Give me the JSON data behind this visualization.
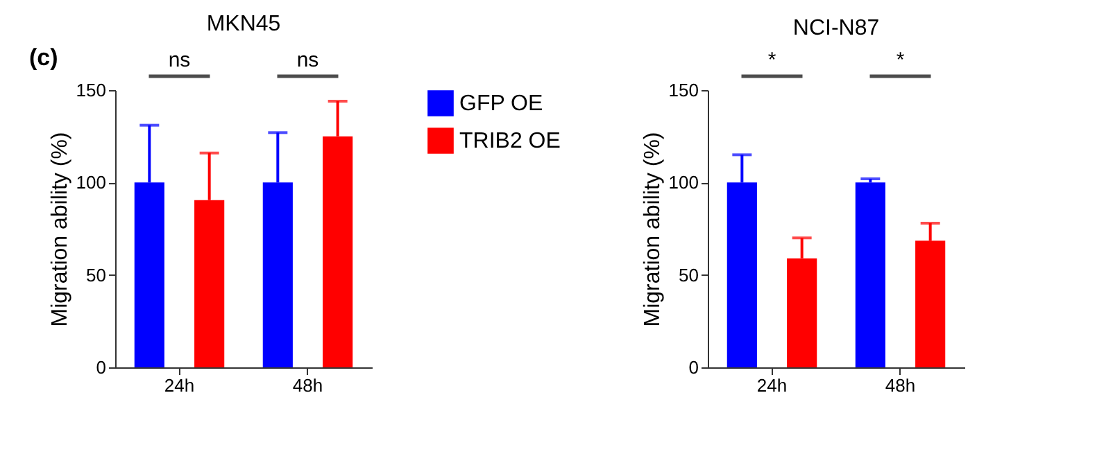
{
  "chart_data": [
    {
      "type": "bar",
      "title": "MKN45",
      "ylabel": "Migration ability (%)",
      "categories": [
        "24h",
        "48h"
      ],
      "series": [
        {
          "name": "GFP OE",
          "color": "#0000ff",
          "values": [
            100,
            100
          ],
          "errors": [
            [
              100,
              131
            ],
            [
              100,
              127
            ]
          ]
        },
        {
          "name": "TRIB2 OE",
          "color": "#ff0000",
          "values": [
            90.5,
            125
          ],
          "errors": [
            [
              90.5,
              116
            ],
            [
              125,
              144
            ]
          ]
        }
      ],
      "ylim": [
        0,
        150
      ],
      "yticks": [
        0,
        50,
        100,
        150
      ],
      "grid": false,
      "legend": "right",
      "annotations": [
        "(c)",
        "ns",
        "ns"
      ]
    },
    {
      "type": "bar",
      "title": "NCI-N87",
      "ylabel": "Migration ability (%)",
      "categories": [
        "24h",
        "48h"
      ],
      "series": [
        {
          "color": "#0000ff",
          "values": [
            100,
            100
          ],
          "errors": [
            [
              100,
              115
            ],
            [
              100,
              102
            ]
          ]
        },
        {
          "color": "#ff0000",
          "values": [
            59,
            68.5
          ],
          "errors": [
            [
              59,
              70
            ],
            [
              68.5,
              78
            ]
          ]
        }
      ],
      "ylim": [
        0,
        150
      ],
      "yticks": [
        0,
        50,
        100,
        150
      ],
      "grid": false,
      "annotations": [
        "*",
        "*"
      ]
    }
  ]
}
